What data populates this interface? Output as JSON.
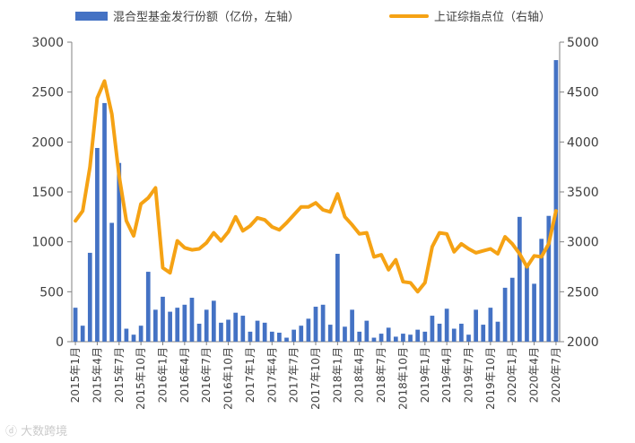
{
  "legend": {
    "bar_label": "混合型基金发行份额（亿份，左轴）",
    "line_label": "上证综指点位（右轴）"
  },
  "watermark": {
    "text": "大数跨境"
  },
  "colors": {
    "bar": "#4472c4",
    "line": "#f5a214",
    "axis": "#808080",
    "text": "#404040"
  },
  "chart_data": {
    "type": "bar",
    "title": "",
    "left_axis": {
      "ylim": [
        0,
        3000
      ],
      "ticks": [
        0,
        500,
        1000,
        1500,
        2000,
        2500,
        3000
      ]
    },
    "right_axis": {
      "ylim": [
        2000,
        5000
      ],
      "ticks": [
        2000,
        2500,
        3000,
        3500,
        4000,
        4500,
        5000
      ]
    },
    "x_tick_labels": [
      "2015年1月",
      "2015年4月",
      "2015年7月",
      "2015年10月",
      "2016年1月",
      "2016年4月",
      "2016年7月",
      "2016年10月",
      "2017年1月",
      "2017年4月",
      "2017年7月",
      "2017年10月",
      "2018年1月",
      "2018年4月",
      "2018年7月",
      "2018年10月",
      "2019年1月",
      "2019年4月",
      "2019年7月",
      "2019年10月",
      "2020年1月",
      "2020年4月",
      "2020年7月"
    ],
    "series": [
      {
        "name": "混合型基金发行份额（亿份，左轴）",
        "type": "bar",
        "axis": "left",
        "values": [
          340,
          160,
          890,
          1940,
          2390,
          1190,
          1790,
          130,
          70,
          160,
          700,
          320,
          450,
          300,
          340,
          370,
          440,
          180,
          320,
          410,
          190,
          220,
          290,
          260,
          100,
          210,
          190,
          100,
          90,
          40,
          120,
          160,
          230,
          350,
          370,
          170,
          880,
          150,
          320,
          100,
          210,
          40,
          80,
          140,
          50,
          80,
          70,
          120,
          100,
          260,
          180,
          330,
          130,
          180,
          70,
          320,
          170,
          340,
          200,
          540,
          640,
          1250,
          780,
          580,
          1030,
          1260,
          2820
        ]
      },
      {
        "name": "上证综指点位（右轴）",
        "type": "line",
        "axis": "right",
        "values": [
          3210,
          3310,
          3750,
          4440,
          4610,
          4280,
          3660,
          3210,
          3060,
          3380,
          3440,
          3540,
          2740,
          2690,
          3010,
          2940,
          2920,
          2930,
          2990,
          3090,
          3010,
          3100,
          3250,
          3110,
          3160,
          3240,
          3220,
          3150,
          3120,
          3190,
          3270,
          3350,
          3350,
          3390,
          3320,
          3300,
          3480,
          3250,
          3170,
          3080,
          3090,
          2850,
          2870,
          2720,
          2820,
          2600,
          2590,
          2500,
          2590,
          2950,
          3090,
          3080,
          2900,
          2980,
          2930,
          2890,
          2910,
          2930,
          2880,
          3050,
          2980,
          2880,
          2750,
          2860,
          2850,
          2980,
          3310
        ]
      }
    ]
  }
}
